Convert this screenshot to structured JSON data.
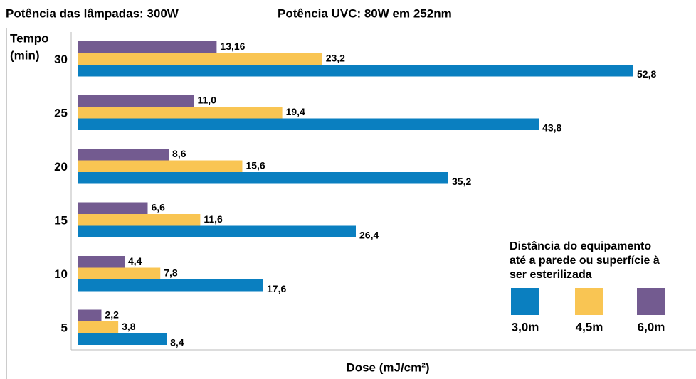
{
  "chart_data": {
    "type": "bar",
    "orientation": "horizontal",
    "title": "Potência das lâmpadas: 300W",
    "subtitle": "Potência UVC: 80W em 252nm",
    "y_label": [
      "Tempo",
      "(min)"
    ],
    "x_label": "Dose (mJ/cm²)",
    "categories": [
      "30",
      "25",
      "20",
      "15",
      "10",
      "5"
    ],
    "xlim": [
      0,
      55
    ],
    "legend_title": [
      "Distância do equipamento",
      "até a parede ou superfície à",
      "ser esterilizada"
    ],
    "legend_position": "lower right",
    "series": [
      {
        "name": "3,0m",
        "color": "#0a7fc0",
        "values": [
          52.8,
          43.8,
          35.2,
          26.4,
          17.6,
          8.4
        ],
        "value_labels": [
          "52,8",
          "43,8",
          "35,2",
          "26,4",
          "17,6",
          "8,4"
        ]
      },
      {
        "name": "4,5m",
        "color": "#f9c553",
        "values": [
          23.2,
          19.4,
          15.6,
          11.6,
          7.8,
          3.8
        ],
        "value_labels": [
          "23,2",
          "19,4",
          "15,6",
          "11,6",
          "7,8",
          "3,8"
        ]
      },
      {
        "name": "6,0m",
        "color": "#735b90",
        "values": [
          13.16,
          11.0,
          8.6,
          6.6,
          4.4,
          2.2
        ],
        "value_labels": [
          "13,16",
          "11,0",
          "8,6",
          "6,6",
          "4,4",
          "2,2"
        ]
      }
    ]
  }
}
